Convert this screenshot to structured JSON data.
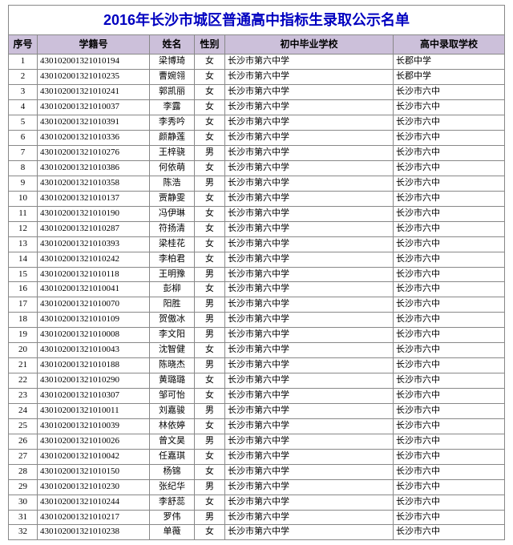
{
  "title": "2016年长沙市城区普通高中指标生录取公示名单",
  "title_color": "#0000c0",
  "title_fontsize": 18,
  "header_bg": "#ccc0da",
  "columns": [
    "序号",
    "学籍号",
    "姓名",
    "性别",
    "初中毕业学校",
    "高中录取学校"
  ],
  "rows": [
    [
      "1",
      "430102001321010194",
      "梁博琦",
      "女",
      "长沙市第六中学",
      "长郡中学"
    ],
    [
      "2",
      "430102001321010235",
      "曹婉翎",
      "女",
      "长沙市第六中学",
      "长郡中学"
    ],
    [
      "3",
      "430102001321010241",
      "郭凯丽",
      "女",
      "长沙市第六中学",
      "长沙市六中"
    ],
    [
      "4",
      "430102001321010037",
      "李露",
      "女",
      "长沙市第六中学",
      "长沙市六中"
    ],
    [
      "5",
      "430102001321010391",
      "李秀吟",
      "女",
      "长沙市第六中学",
      "长沙市六中"
    ],
    [
      "6",
      "430102001321010336",
      "颜静莲",
      "女",
      "长沙市第六中学",
      "长沙市六中"
    ],
    [
      "7",
      "430102001321010276",
      "王梓骁",
      "男",
      "长沙市第六中学",
      "长沙市六中"
    ],
    [
      "8",
      "430102001321010386",
      "何依萌",
      "女",
      "长沙市第六中学",
      "长沙市六中"
    ],
    [
      "9",
      "430102001321010358",
      "陈浩",
      "男",
      "长沙市第六中学",
      "长沙市六中"
    ],
    [
      "10",
      "430102001321010137",
      "贾静雯",
      "女",
      "长沙市第六中学",
      "长沙市六中"
    ],
    [
      "11",
      "430102001321010190",
      "冯伊琳",
      "女",
      "长沙市第六中学",
      "长沙市六中"
    ],
    [
      "12",
      "430102001321010287",
      "符扬清",
      "女",
      "长沙市第六中学",
      "长沙市六中"
    ],
    [
      "13",
      "430102001321010393",
      "梁桂花",
      "女",
      "长沙市第六中学",
      "长沙市六中"
    ],
    [
      "14",
      "430102001321010242",
      "李柏君",
      "女",
      "长沙市第六中学",
      "长沙市六中"
    ],
    [
      "15",
      "430102001321010118",
      "王明豫",
      "男",
      "长沙市第六中学",
      "长沙市六中"
    ],
    [
      "16",
      "430102001321010041",
      "彭柳",
      "女",
      "长沙市第六中学",
      "长沙市六中"
    ],
    [
      "17",
      "430102001321010070",
      "阳胜",
      "男",
      "长沙市第六中学",
      "长沙市六中"
    ],
    [
      "18",
      "430102001321010109",
      "贺傲冰",
      "男",
      "长沙市第六中学",
      "长沙市六中"
    ],
    [
      "19",
      "430102001321010008",
      "李文阳",
      "男",
      "长沙市第六中学",
      "长沙市六中"
    ],
    [
      "20",
      "430102001321010043",
      "沈智健",
      "女",
      "长沙市第六中学",
      "长沙市六中"
    ],
    [
      "21",
      "430102001321010188",
      "陈晓杰",
      "男",
      "长沙市第六中学",
      "长沙市六中"
    ],
    [
      "22",
      "430102001321010290",
      "黄璐璐",
      "女",
      "长沙市第六中学",
      "长沙市六中"
    ],
    [
      "23",
      "430102001321010307",
      "邹可怡",
      "女",
      "长沙市第六中学",
      "长沙市六中"
    ],
    [
      "24",
      "430102001321010011",
      "刘嘉骏",
      "男",
      "长沙市第六中学",
      "长沙市六中"
    ],
    [
      "25",
      "430102001321010039",
      "林依婷",
      "女",
      "长沙市第六中学",
      "长沙市六中"
    ],
    [
      "26",
      "430102001321010026",
      "曾文昊",
      "男",
      "长沙市第六中学",
      "长沙市六中"
    ],
    [
      "27",
      "430102001321010042",
      "任嘉琪",
      "女",
      "长沙市第六中学",
      "长沙市六中"
    ],
    [
      "28",
      "430102001321010150",
      "杨锦",
      "女",
      "长沙市第六中学",
      "长沙市六中"
    ],
    [
      "29",
      "430102001321010230",
      "张纪华",
      "男",
      "长沙市第六中学",
      "长沙市六中"
    ],
    [
      "30",
      "430102001321010244",
      "李舒蕊",
      "女",
      "长沙市第六中学",
      "长沙市六中"
    ],
    [
      "31",
      "430102001321010217",
      "罗伟",
      "男",
      "长沙市第六中学",
      "长沙市六中"
    ],
    [
      "32",
      "430102001321010238",
      "单薇",
      "女",
      "长沙市第六中学",
      "长沙市六中"
    ]
  ]
}
